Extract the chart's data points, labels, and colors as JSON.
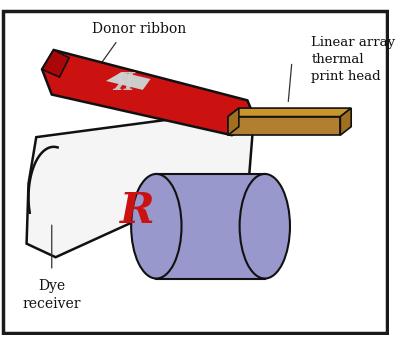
{
  "background_color": "#ffffff",
  "labels": {
    "donor_ribbon": "Donor ribbon",
    "linear_array": "Linear array\nthermal\nprint head",
    "dye_receiver": "Dye\nreceiver"
  },
  "colors": {
    "border": "#1a1a1a",
    "donor_ribbon_fill": "#cc1111",
    "donor_ribbon_dark": "#aa0808",
    "donor_ribbon_edge": "#111111",
    "receiver_fill": "#f5f5f5",
    "receiver_edge": "#111111",
    "cylinder_fill": "#9898cc",
    "cylinder_edge": "#111111",
    "print_head_top": "#c8962a",
    "print_head_side": "#a07020",
    "print_head_front": "#b08030",
    "print_head_edge": "#111111",
    "dye_letter_red": "#cc1111",
    "ribbon_mark": "#cccccc",
    "annotation_line": "#333333",
    "text_color": "#111111"
  },
  "figsize": [
    4.1,
    3.44
  ],
  "dpi": 100
}
